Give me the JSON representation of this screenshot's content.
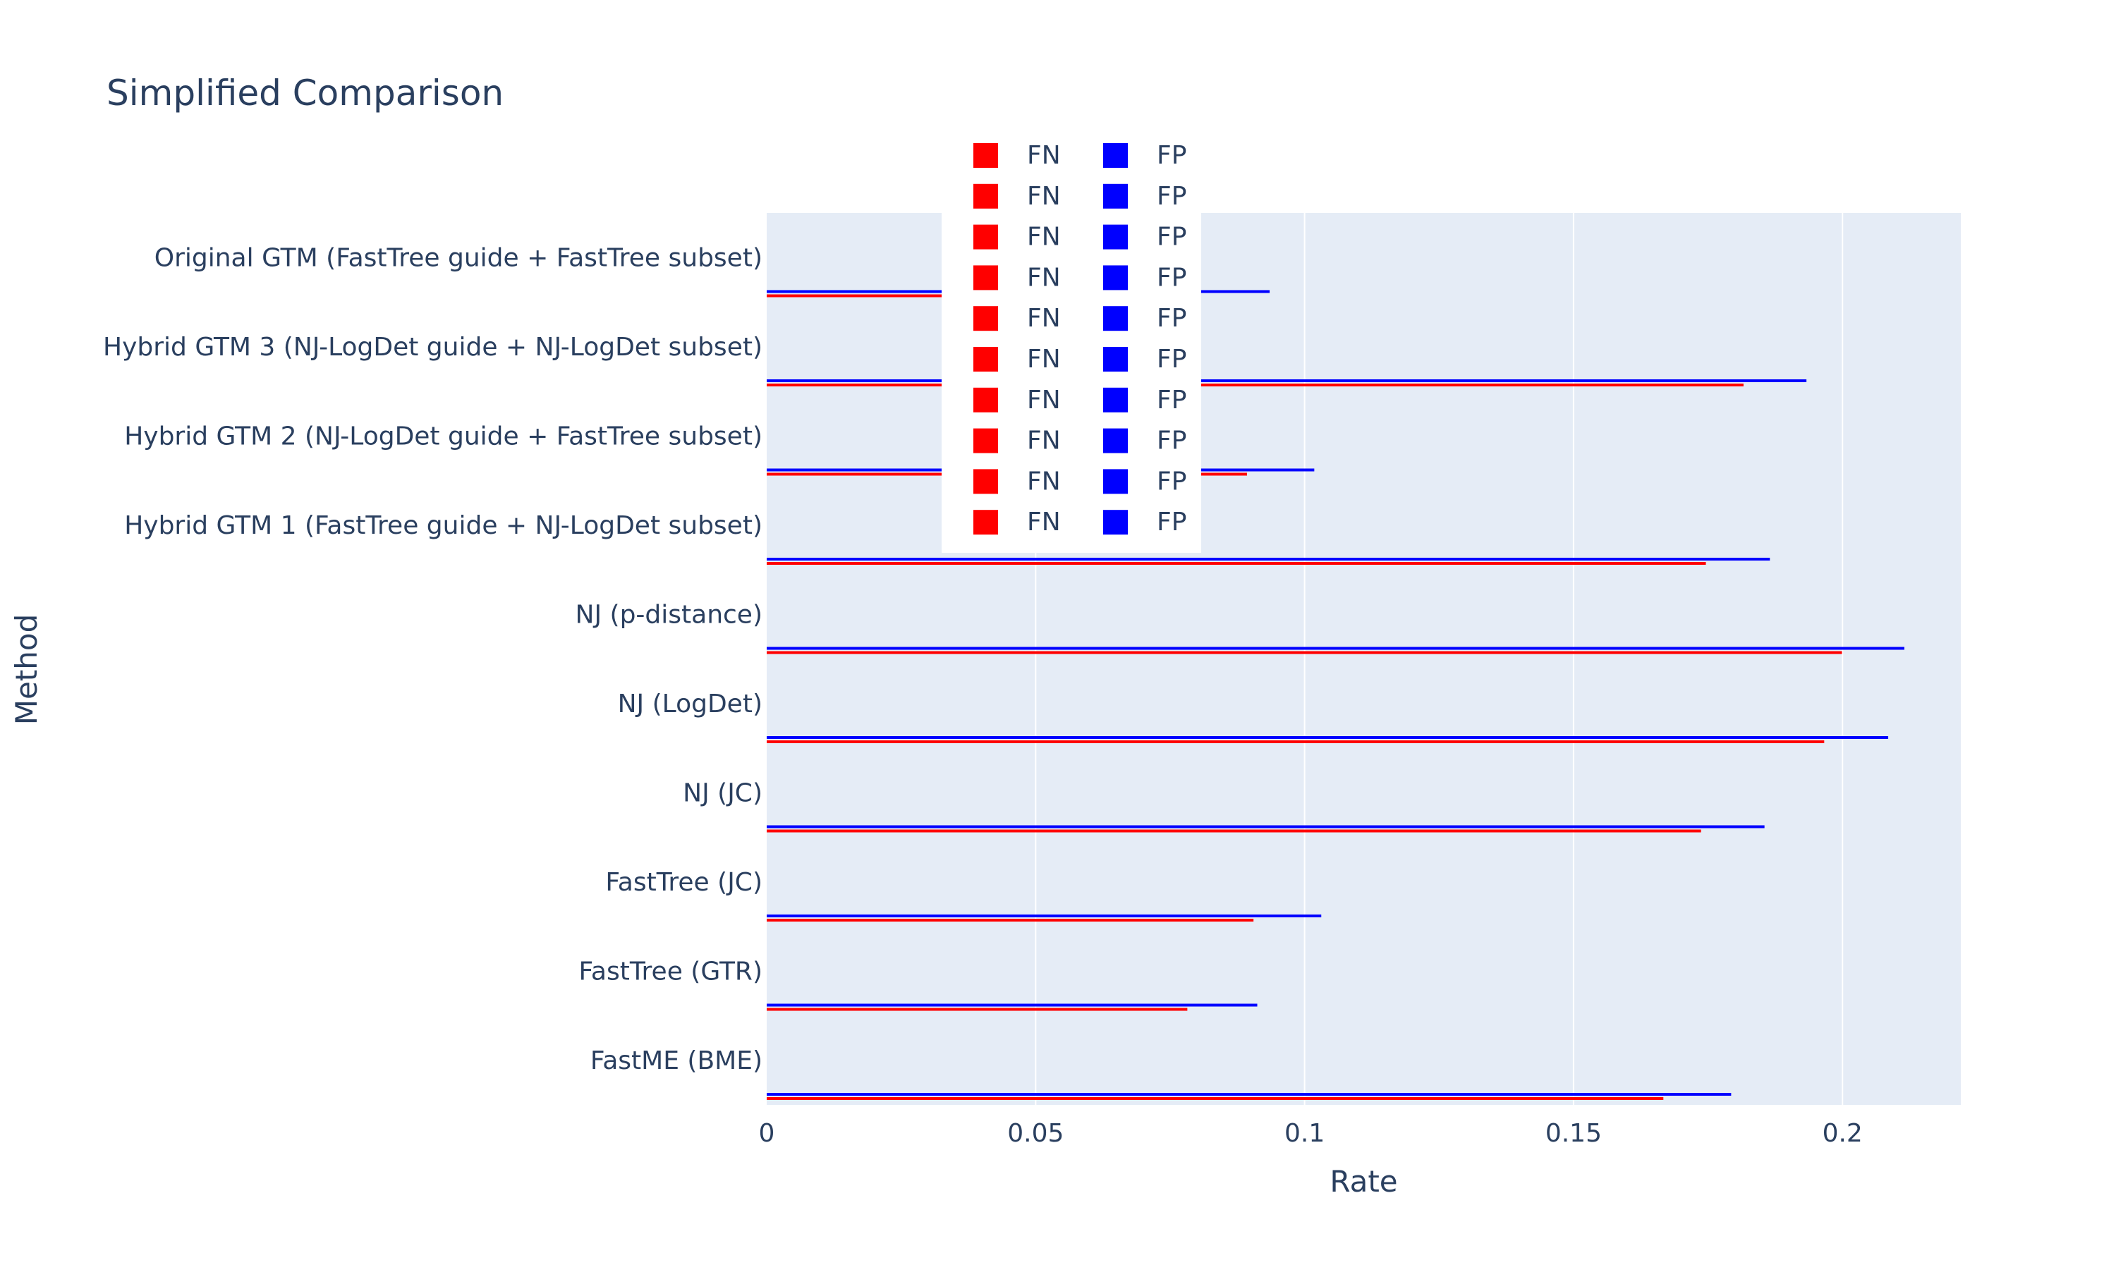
{
  "chart_data": {
    "type": "bar",
    "orientation": "horizontal",
    "title": "Simplified Comparison",
    "xlabel": "Rate",
    "ylabel": "Method",
    "xlim": [
      0,
      0.222
    ],
    "xticks": [
      0,
      0.05,
      0.1,
      0.15,
      0.2
    ],
    "xtick_labels": [
      "0",
      "0.05",
      "0.1",
      "0.15",
      "0.2"
    ],
    "grid": true,
    "legend_placement": "top-center",
    "categories": [
      "FastME (BME)",
      "FastTree (GTR)",
      "FastTree (JC)",
      "NJ (JC)",
      "NJ (LogDet)",
      "NJ (p-distance)",
      "Hybrid GTM 1 (FastTree guide + NJ-LogDet subset)",
      "Hybrid GTM 2 (NJ-LogDet guide + FastTree subset)",
      "Hybrid GTM 3 (NJ-LogDet guide + NJ-LogDet subset)",
      "Original GTM (FastTree guide + FastTree subset)"
    ],
    "series": [
      {
        "name": "FN",
        "color": "#ff0000",
        "values": [
          0.1667,
          0.0782,
          0.0905,
          0.1737,
          0.1966,
          0.1999,
          0.1746,
          0.0893,
          0.1816,
          0.08
        ]
      },
      {
        "name": "FP",
        "color": "#0000ff",
        "values": [
          0.1793,
          0.0912,
          0.1031,
          0.1855,
          0.2085,
          0.2115,
          0.1865,
          0.1018,
          0.1933,
          0.0935
        ]
      }
    ],
    "legend_entries": [
      "FN",
      "FN",
      "FN",
      "FN",
      "FN",
      "FN",
      "FN",
      "FN",
      "FN",
      "FN",
      "FP",
      "FP",
      "FP",
      "FP",
      "FP",
      "FP",
      "FP",
      "FP",
      "FP",
      "FP"
    ]
  }
}
